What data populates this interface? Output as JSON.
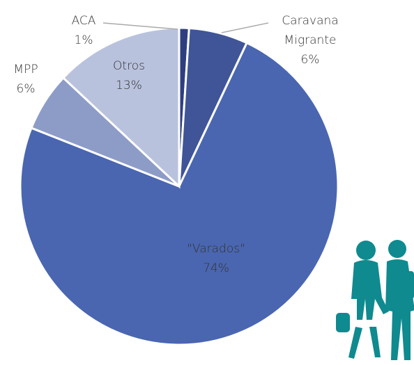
{
  "chart_data": {
    "type": "pie",
    "categories": [
      "ACA",
      "Caravana Migrante",
      "\"Varados\"",
      "MPP",
      "Otros"
    ],
    "values": [
      1,
      6,
      74,
      6,
      13
    ],
    "value_labels": [
      "1%",
      "6%",
      "74%",
      "6%",
      "13%"
    ],
    "colors": [
      "#2e3f80",
      "#3f5597",
      "#4a66b0",
      "#8d9cc7",
      "#b9c2dd"
    ]
  }
}
